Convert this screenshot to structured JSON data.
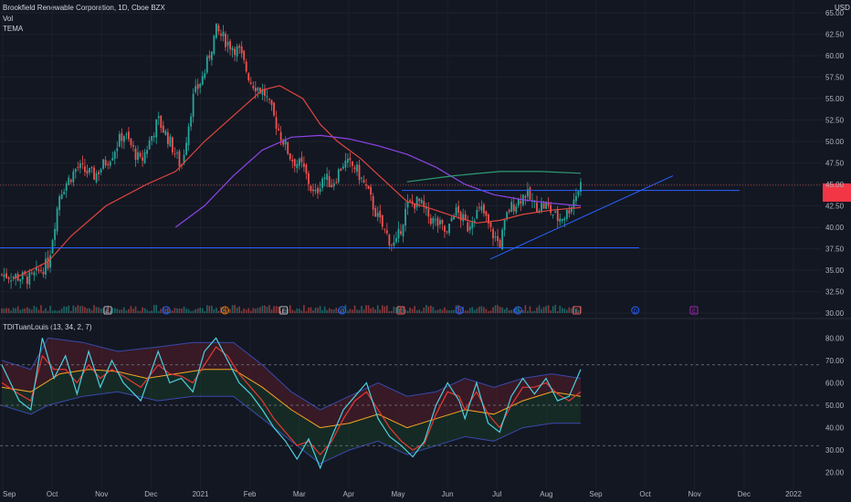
{
  "header": {
    "title": "Brookfield Renewable Corporation, 1D, Cboe BZX",
    "vol_label": "Vol",
    "tema_label": "TEMA",
    "indicator_label": "TDITuanLouis (13, 34, 2, 7)",
    "currency": "USD"
  },
  "price_tag": {
    "value": "",
    "countdown": ""
  },
  "colors": {
    "background": "#131722",
    "up": "#26a69a",
    "down": "#ef5350",
    "ma_fast": "#e0453f",
    "ma_slow": "#8e44e8",
    "ma_long": "#2e9d6f",
    "trendline": "#2962ff",
    "tdi_green": "#4dd0e1",
    "tdi_red": "#e53935",
    "tdi_signal": "#f5a623"
  },
  "chart_data": {
    "type": "candlestick",
    "ylim": [
      30,
      65
    ],
    "y_ticks": [
      "65.00",
      "62.50",
      "60.00",
      "57.50",
      "55.00",
      "52.50",
      "50.00",
      "47.50",
      "45.00",
      "42.50",
      "40.00",
      "37.50",
      "35.00",
      "32.50",
      "30.00"
    ],
    "x_ticks": [
      "Sep",
      "Oct",
      "Nov",
      "Dec",
      "2021",
      "Feb",
      "Mar",
      "Apr",
      "May",
      "Jun",
      "Jul",
      "Aug",
      "Sep",
      "Oct",
      "Nov",
      "Dec",
      "2022"
    ],
    "price_path": [
      [
        0,
        34.5
      ],
      [
        0.05,
        34
      ],
      [
        0.08,
        35.8
      ],
      [
        0.1,
        44
      ],
      [
        0.13,
        47
      ],
      [
        0.16,
        46
      ],
      [
        0.19,
        48.5
      ],
      [
        0.21,
        51
      ],
      [
        0.24,
        47.5
      ],
      [
        0.27,
        52.5
      ],
      [
        0.29,
        50
      ],
      [
        0.31,
        47
      ],
      [
        0.33,
        55
      ],
      [
        0.35,
        58
      ],
      [
        0.37,
        63
      ],
      [
        0.39,
        61.5
      ],
      [
        0.41,
        60.5
      ],
      [
        0.43,
        57
      ],
      [
        0.455,
        55.5
      ],
      [
        0.48,
        51
      ],
      [
        0.5,
        48
      ],
      [
        0.52,
        47
      ],
      [
        0.54,
        43.5
      ],
      [
        0.555,
        46
      ],
      [
        0.57,
        45
      ],
      [
        0.59,
        47.5
      ],
      [
        0.61,
        47
      ],
      [
        0.63,
        44.5
      ],
      [
        0.65,
        41
      ],
      [
        0.67,
        38.5
      ],
      [
        0.68,
        37.8
      ],
      [
        0.7,
        42.5
      ],
      [
        0.72,
        43
      ],
      [
        0.74,
        41
      ],
      [
        0.76,
        40
      ],
      [
        0.77,
        39
      ],
      [
        0.78,
        42
      ],
      [
        0.79,
        41.5
      ],
      [
        0.805,
        40
      ],
      [
        0.815,
        41.5
      ],
      [
        0.83,
        42
      ],
      [
        0.845,
        39.5
      ],
      [
        0.86,
        38
      ],
      [
        0.875,
        42
      ],
      [
        0.89,
        43
      ],
      [
        0.905,
        44
      ],
      [
        0.92,
        42.5
      ],
      [
        0.94,
        42.5
      ],
      [
        0.96,
        41
      ],
      [
        0.975,
        41.5
      ],
      [
        1.0,
        45
      ]
    ],
    "ma_fast_path": [
      [
        0.02,
        34
      ],
      [
        0.08,
        36
      ],
      [
        0.12,
        39
      ],
      [
        0.18,
        42.5
      ],
      [
        0.25,
        45
      ],
      [
        0.3,
        46.5
      ],
      [
        0.35,
        50
      ],
      [
        0.4,
        53
      ],
      [
        0.45,
        56
      ],
      [
        0.48,
        56.5
      ],
      [
        0.52,
        55
      ],
      [
        0.55,
        52
      ],
      [
        0.58,
        50
      ],
      [
        0.62,
        48
      ],
      [
        0.66,
        45.5
      ],
      [
        0.7,
        43
      ],
      [
        0.74,
        42.2
      ],
      [
        0.78,
        41.3
      ],
      [
        0.82,
        40.5
      ],
      [
        0.86,
        40.8
      ],
      [
        0.9,
        41.5
      ],
      [
        0.95,
        42
      ],
      [
        1.0,
        42.3
      ]
    ],
    "ma_slow_path": [
      [
        0.3,
        40
      ],
      [
        0.35,
        42.5
      ],
      [
        0.4,
        46
      ],
      [
        0.45,
        49
      ],
      [
        0.5,
        50.5
      ],
      [
        0.55,
        50.7
      ],
      [
        0.6,
        50.3
      ],
      [
        0.65,
        49.5
      ],
      [
        0.7,
        48.5
      ],
      [
        0.75,
        47
      ],
      [
        0.8,
        45
      ],
      [
        0.85,
        43.8
      ],
      [
        0.9,
        43.2
      ],
      [
        0.95,
        42.8
      ],
      [
        1.0,
        42.5
      ]
    ],
    "ma_long_path": [
      [
        0.7,
        45.3
      ],
      [
        0.78,
        46
      ],
      [
        0.86,
        46.5
      ],
      [
        0.93,
        46.5
      ],
      [
        1.0,
        46.3
      ]
    ],
    "tdi": {
      "ylim": [
        15,
        85
      ],
      "y_ticks": [
        "80.00",
        "70.00",
        "60.00",
        "50.00",
        "40.00",
        "30.00",
        "20.00"
      ],
      "levels": [
        68,
        50,
        32
      ],
      "green_path": [
        [
          0,
          68
        ],
        [
          0.03,
          52
        ],
        [
          0.05,
          48
        ],
        [
          0.07,
          80
        ],
        [
          0.09,
          62
        ],
        [
          0.11,
          72
        ],
        [
          0.13,
          55
        ],
        [
          0.15,
          74
        ],
        [
          0.17,
          58
        ],
        [
          0.19,
          70
        ],
        [
          0.21,
          60
        ],
        [
          0.24,
          52
        ],
        [
          0.27,
          74
        ],
        [
          0.29,
          60
        ],
        [
          0.31,
          62
        ],
        [
          0.33,
          56
        ],
        [
          0.35,
          74
        ],
        [
          0.37,
          80
        ],
        [
          0.39,
          70
        ],
        [
          0.41,
          60
        ],
        [
          0.43,
          55
        ],
        [
          0.45,
          48
        ],
        [
          0.47,
          40
        ],
        [
          0.49,
          34
        ],
        [
          0.51,
          26
        ],
        [
          0.53,
          35
        ],
        [
          0.55,
          22
        ],
        [
          0.57,
          36
        ],
        [
          0.59,
          48
        ],
        [
          0.61,
          54
        ],
        [
          0.63,
          60
        ],
        [
          0.65,
          44
        ],
        [
          0.67,
          36
        ],
        [
          0.69,
          32
        ],
        [
          0.71,
          27
        ],
        [
          0.73,
          34
        ],
        [
          0.75,
          50
        ],
        [
          0.77,
          60
        ],
        [
          0.79,
          52
        ],
        [
          0.8,
          44
        ],
        [
          0.82,
          60
        ],
        [
          0.84,
          42
        ],
        [
          0.86,
          38
        ],
        [
          0.88,
          54
        ],
        [
          0.9,
          62
        ],
        [
          0.92,
          55
        ],
        [
          0.94,
          62
        ],
        [
          0.96,
          52
        ],
        [
          0.98,
          54
        ],
        [
          1.0,
          66
        ]
      ],
      "red_path": [
        [
          0,
          60
        ],
        [
          0.03,
          55
        ],
        [
          0.05,
          52
        ],
        [
          0.07,
          72
        ],
        [
          0.09,
          66
        ],
        [
          0.11,
          66
        ],
        [
          0.13,
          60
        ],
        [
          0.15,
          68
        ],
        [
          0.17,
          62
        ],
        [
          0.19,
          66
        ],
        [
          0.21,
          63
        ],
        [
          0.24,
          58
        ],
        [
          0.27,
          68
        ],
        [
          0.29,
          64
        ],
        [
          0.31,
          63
        ],
        [
          0.33,
          60
        ],
        [
          0.35,
          68
        ],
        [
          0.37,
          76
        ],
        [
          0.39,
          72
        ],
        [
          0.41,
          64
        ],
        [
          0.43,
          58
        ],
        [
          0.45,
          52
        ],
        [
          0.47,
          44
        ],
        [
          0.49,
          38
        ],
        [
          0.51,
          32
        ],
        [
          0.53,
          34
        ],
        [
          0.55,
          28
        ],
        [
          0.57,
          34
        ],
        [
          0.59,
          44
        ],
        [
          0.61,
          52
        ],
        [
          0.63,
          56
        ],
        [
          0.65,
          48
        ],
        [
          0.67,
          40
        ],
        [
          0.69,
          34
        ],
        [
          0.71,
          30
        ],
        [
          0.73,
          33
        ],
        [
          0.75,
          46
        ],
        [
          0.77,
          56
        ],
        [
          0.79,
          54
        ],
        [
          0.8,
          48
        ],
        [
          0.82,
          56
        ],
        [
          0.84,
          46
        ],
        [
          0.86,
          40
        ],
        [
          0.88,
          50
        ],
        [
          0.9,
          58
        ],
        [
          0.92,
          58
        ],
        [
          0.94,
          60
        ],
        [
          0.96,
          55
        ],
        [
          0.98,
          52
        ],
        [
          1.0,
          56
        ]
      ],
      "signal_path": [
        [
          0,
          58
        ],
        [
          0.05,
          56
        ],
        [
          0.1,
          64
        ],
        [
          0.15,
          66
        ],
        [
          0.2,
          65
        ],
        [
          0.25,
          62
        ],
        [
          0.3,
          64
        ],
        [
          0.35,
          66
        ],
        [
          0.4,
          66
        ],
        [
          0.45,
          58
        ],
        [
          0.5,
          48
        ],
        [
          0.55,
          40
        ],
        [
          0.6,
          42
        ],
        [
          0.65,
          46
        ],
        [
          0.7,
          40
        ],
        [
          0.75,
          44
        ],
        [
          0.8,
          48
        ],
        [
          0.85,
          46
        ],
        [
          0.9,
          52
        ],
        [
          0.95,
          56
        ],
        [
          1.0,
          54
        ]
      ],
      "band_upper_path": [
        [
          0,
          70
        ],
        [
          0.05,
          66
        ],
        [
          0.08,
          80
        ],
        [
          0.14,
          78
        ],
        [
          0.2,
          74
        ],
        [
          0.27,
          76
        ],
        [
          0.33,
          78
        ],
        [
          0.4,
          78
        ],
        [
          0.45,
          68
        ],
        [
          0.5,
          56
        ],
        [
          0.55,
          48
        ],
        [
          0.6,
          54
        ],
        [
          0.65,
          60
        ],
        [
          0.7,
          54
        ],
        [
          0.75,
          56
        ],
        [
          0.8,
          62
        ],
        [
          0.85,
          58
        ],
        [
          0.9,
          62
        ],
        [
          0.95,
          64
        ],
        [
          1.0,
          62
        ]
      ],
      "band_lower_path": [
        [
          0,
          50
        ],
        [
          0.05,
          46
        ],
        [
          0.08,
          50
        ],
        [
          0.14,
          54
        ],
        [
          0.2,
          56
        ],
        [
          0.27,
          52
        ],
        [
          0.33,
          54
        ],
        [
          0.4,
          54
        ],
        [
          0.45,
          44
        ],
        [
          0.5,
          34
        ],
        [
          0.55,
          24
        ],
        [
          0.6,
          30
        ],
        [
          0.65,
          34
        ],
        [
          0.7,
          28
        ],
        [
          0.75,
          32
        ],
        [
          0.8,
          36
        ],
        [
          0.85,
          34
        ],
        [
          0.9,
          40
        ],
        [
          0.95,
          42
        ],
        [
          1.0,
          42
        ]
      ]
    },
    "events": [
      {
        "kind": "E",
        "color": "#b2b5be"
      },
      {
        "kind": "D",
        "color": "#2962ff"
      },
      {
        "kind": "S",
        "color": "#f57c00"
      },
      {
        "kind": "E",
        "color": "#b2b5be"
      },
      {
        "kind": "D",
        "color": "#2962ff"
      },
      {
        "kind": "E",
        "color": "#ef5350"
      },
      {
        "kind": "D",
        "color": "#2962ff"
      },
      {
        "kind": "D",
        "color": "#2962ff"
      },
      {
        "kind": "E",
        "color": "#ef5350"
      },
      {
        "kind": "D",
        "color": "#2962ff"
      },
      {
        "kind": "E",
        "color": "#9c27b0"
      }
    ]
  }
}
